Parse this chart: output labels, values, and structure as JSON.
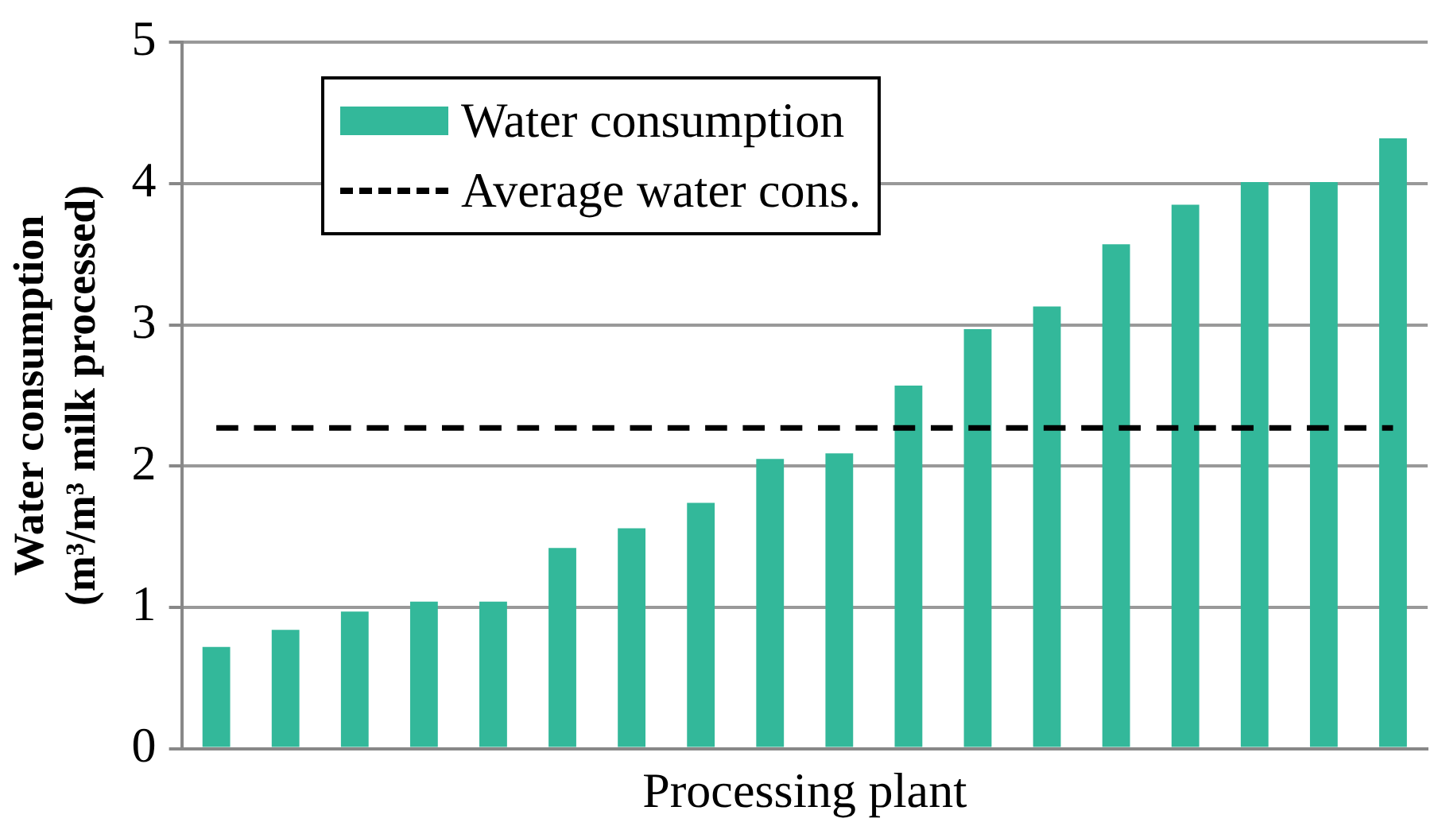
{
  "chart_data": {
    "type": "bar",
    "xlabel": "Processing plant",
    "ylabel": "Water consumption\n(m³/m³ milk processed)",
    "categories": [
      null,
      null,
      null,
      null,
      null,
      null,
      null,
      null,
      null,
      null,
      null,
      null,
      null,
      null,
      null,
      null,
      null,
      null
    ],
    "series": [
      {
        "name": "Water consumption",
        "color": "#33b89a",
        "values": [
          0.72,
          0.84,
          0.97,
          1.04,
          1.04,
          1.42,
          1.56,
          1.74,
          2.05,
          2.09,
          2.57,
          2.97,
          3.13,
          3.57,
          3.85,
          4.01,
          4.01,
          4.32
        ]
      },
      {
        "name": "Average water cons.",
        "type": "line",
        "color": "#000000",
        "line_style": "dashed",
        "marker": "none",
        "values": [
          2.27,
          2.27,
          2.27,
          2.27,
          2.27,
          2.27,
          2.27,
          2.27,
          2.27,
          2.27,
          2.27,
          2.27,
          2.27,
          2.27,
          2.27,
          2.27,
          2.27,
          2.27
        ]
      }
    ],
    "ylim": [
      0,
      5
    ],
    "yticks": [
      0,
      1,
      2,
      3,
      4,
      5
    ],
    "grid": "y",
    "legend": "top left"
  }
}
